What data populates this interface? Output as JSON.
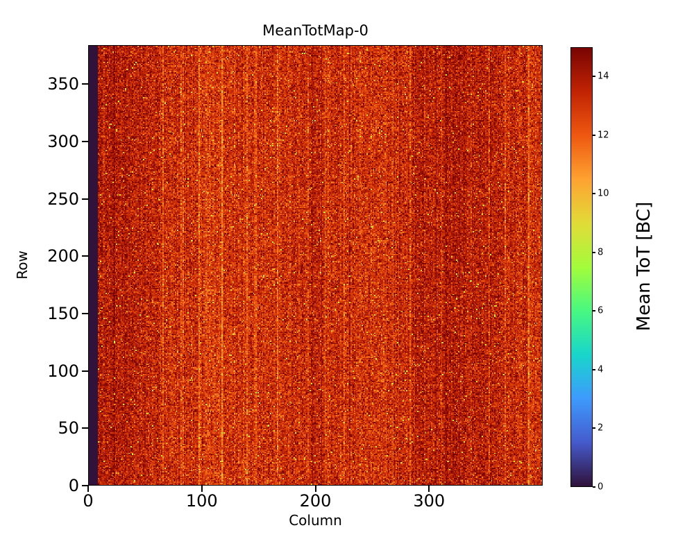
{
  "figure": {
    "title": "MeanTotMap-0",
    "xlabel": "Column",
    "ylabel": "Row",
    "colorbar_label": "Mean ToT [BC]",
    "background": "#ffffff"
  },
  "chart_data": {
    "type": "heatmap",
    "title": "MeanTotMap-0",
    "xlabel": "Column",
    "ylabel": "Row",
    "x_range": [
      0,
      400
    ],
    "y_range": [
      0,
      384
    ],
    "x_ticks": [
      0,
      100,
      200,
      300
    ],
    "y_ticks": [
      0,
      50,
      100,
      150,
      200,
      250,
      300,
      350
    ],
    "grid": false,
    "colorbar": {
      "label": "Mean ToT [BC]",
      "ticks": [
        0,
        2,
        4,
        6,
        8,
        10,
        12,
        14
      ],
      "vmin": 0,
      "vmax": 15,
      "position": "right"
    },
    "colormap": {
      "name": "turbo",
      "stops": [
        [
          0.0,
          48,
          18,
          59
        ],
        [
          0.1,
          69,
          91,
          205
        ],
        [
          0.2,
          62,
          155,
          254
        ],
        [
          0.3,
          24,
          214,
          203
        ],
        [
          0.4,
          72,
          248,
          130
        ],
        [
          0.5,
          164,
          252,
          59
        ],
        [
          0.6,
          226,
          220,
          56
        ],
        [
          0.7,
          254,
          163,
          49
        ],
        [
          0.8,
          239,
          89,
          17
        ],
        [
          0.9,
          194,
          36,
          3
        ],
        [
          1.0,
          122,
          4,
          3
        ]
      ]
    },
    "data_model": {
      "description": "400x384 pixel matrix of mean time-over-threshold values; dominated by values 12-15 BC (dark red / orange noise), sparse lower-value speckles, mild vertical column striping, and a dead band of ~8 leftmost columns at value 0",
      "ncols": 400,
      "nrows": 384,
      "mean": 13.35,
      "std": 0.95,
      "dead_left_columns": 8,
      "dead_value": 0,
      "column_noise_std": 0.25,
      "hot_column_count": 28,
      "hot_column_offset": -0.9,
      "dark_column_count": 12,
      "dark_column_offset": 0.6,
      "speckle_fraction": 0.015,
      "speckle_min": 8.0,
      "speckle_max": 11.5,
      "seed": 20
    }
  }
}
